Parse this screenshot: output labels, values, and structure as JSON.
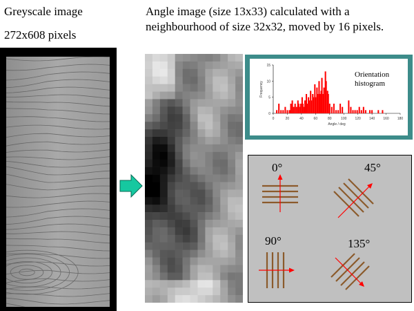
{
  "left": {
    "title": "Greyscale image",
    "size_label": "272x608 pixels"
  },
  "right": {
    "title": "Angle image (size 13x33) calculated with a neighbourhood of size 32x32, moved by 16 pixels."
  },
  "histogram": {
    "label": "Orientation histogram",
    "colors": {
      "frame": "#3d8c8a",
      "bars": "#ff0000"
    }
  },
  "orientations": [
    {
      "label": "0°"
    },
    {
      "label": "45°"
    },
    {
      "label": "90°"
    },
    {
      "label": "135°"
    }
  ],
  "chart_data": {
    "type": "bar",
    "title": "",
    "xlabel": "Angle / deg",
    "ylabel": "Frequency",
    "xlim": [
      0,
      180
    ],
    "ylim": [
      0,
      15
    ],
    "x_ticks": [
      "0",
      "20",
      "40",
      "60",
      "80",
      "100",
      "120",
      "140",
      "160",
      "180"
    ],
    "y_ticks": [
      "0",
      "5",
      "10",
      "15"
    ],
    "x": [
      0,
      3,
      5,
      8,
      11,
      14,
      17,
      20,
      23,
      25,
      27,
      29,
      31,
      33,
      35,
      36,
      38,
      39,
      41,
      42,
      44,
      45,
      47,
      48,
      50,
      51,
      53,
      54,
      56,
      57,
      59,
      60,
      62,
      63,
      65,
      66,
      68,
      69,
      71,
      72,
      74,
      75,
      77,
      78,
      80,
      83,
      86,
      89,
      92,
      95,
      98,
      101,
      104,
      107,
      110,
      113,
      116,
      119,
      122,
      125,
      128,
      131,
      134,
      137,
      140,
      143,
      146,
      149,
      152,
      155,
      158
    ],
    "values": [
      0,
      0,
      1,
      3,
      1,
      1,
      2,
      1,
      1,
      3,
      4,
      2,
      3,
      2,
      4,
      3,
      2,
      3,
      5,
      3,
      2,
      4,
      6,
      3,
      5,
      4,
      7,
      4,
      6,
      5,
      9,
      5,
      8,
      6,
      10,
      6,
      7,
      11,
      6,
      8,
      13,
      10,
      7,
      6,
      3,
      2,
      3,
      1,
      1,
      3,
      2,
      0,
      0,
      4,
      2,
      1,
      1,
      1,
      2,
      1,
      2,
      1,
      0,
      1,
      1,
      0,
      0,
      1,
      0,
      1,
      0
    ],
    "color": "#ff0000"
  }
}
